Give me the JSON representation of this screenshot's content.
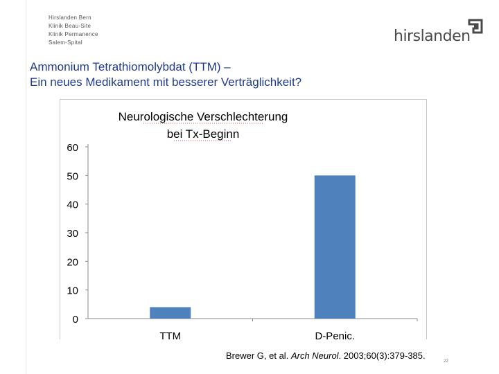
{
  "header": {
    "clinics": [
      "Hirslanden Bern",
      "Klinik Beau-Site",
      "Klinik Permanence",
      "Salem-Spital"
    ],
    "logo_text": "hirslanden",
    "logo_color": "#4a4a4a"
  },
  "slide": {
    "title_line1": "Ammonium Tetrathiomolybdat (TTM) –",
    "title_line2": "Ein neues Medikament mit besserer Verträglichkeit?",
    "title_color": "#1f3a8a"
  },
  "chart_data": {
    "type": "bar",
    "title_line1": "Neurologische Verschlechterung",
    "title_line2": "bei Tx-Beginn",
    "categories": [
      "TTM",
      "D-Penic."
    ],
    "values": [
      4,
      50
    ],
    "ylabel": "%",
    "ylim": [
      0,
      60
    ],
    "yticks": [
      "0",
      "10",
      "20",
      "30",
      "40",
      "50",
      "60"
    ],
    "bar_color": "#4f81bd",
    "grid": false
  },
  "citation": {
    "authors": "Brewer G, et al.",
    "journal": "Arch Neurol",
    "details": ". 2003;60(3):379-385."
  },
  "page_number": "22"
}
